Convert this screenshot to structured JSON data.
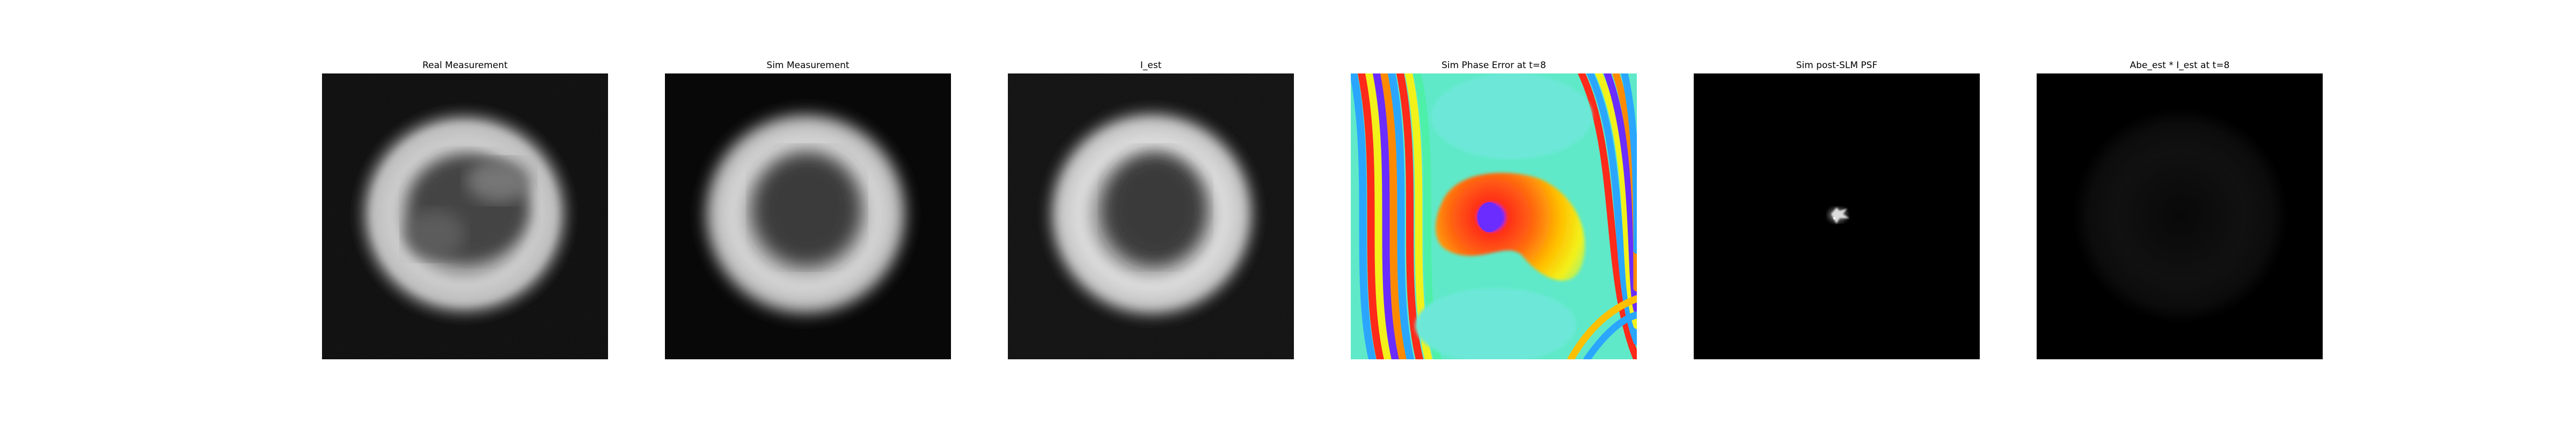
{
  "panels": [
    {
      "title": "Real Measurement"
    },
    {
      "title": "Sim Measurement"
    },
    {
      "title": "I_est"
    },
    {
      "title": "Sim Phase Error at t=8"
    },
    {
      "title": "Sim post-SLM PSF"
    },
    {
      "title": "Abe_est * I_est at t=8"
    }
  ],
  "colors": {
    "background": "#000000",
    "ring": "#e6e6e6",
    "phase_map": [
      "#6a2cff",
      "#ff2a1a",
      "#ffb000",
      "#f5f31a",
      "#4cf0a8",
      "#6de8d8",
      "#2aa6ff"
    ]
  }
}
